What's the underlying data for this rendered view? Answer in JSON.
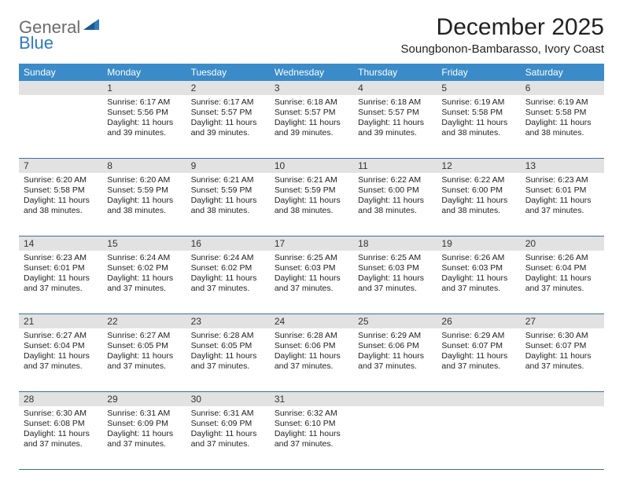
{
  "logo": {
    "text1": "General",
    "text2": "Blue"
  },
  "title": "December 2025",
  "location": "Soungbonon-Bambarasso, Ivory Coast",
  "weekdays": [
    "Sunday",
    "Monday",
    "Tuesday",
    "Wednesday",
    "Thursday",
    "Friday",
    "Saturday"
  ],
  "colors": {
    "header_bg": "#3b8bc8",
    "header_text": "#ffffff",
    "daynum_bg": "#e2e2e2",
    "row_border": "#3b6fa0",
    "logo_gray": "#6b6b6b",
    "logo_blue": "#2d7bc0",
    "text": "#222222"
  },
  "typography": {
    "title_fontsize": 30,
    "location_fontsize": 15,
    "weekday_fontsize": 12,
    "daynum_fontsize": 12,
    "cell_fontsize": 10.5
  },
  "layout": {
    "columns": 7,
    "rows": 5,
    "cell_min_height": 80
  },
  "weeks": [
    [
      {
        "n": "",
        "sr": "",
        "ss": "",
        "dl": ""
      },
      {
        "n": "1",
        "sr": "6:17 AM",
        "ss": "5:56 PM",
        "dl": "11 hours and 39 minutes."
      },
      {
        "n": "2",
        "sr": "6:17 AM",
        "ss": "5:57 PM",
        "dl": "11 hours and 39 minutes."
      },
      {
        "n": "3",
        "sr": "6:18 AM",
        "ss": "5:57 PM",
        "dl": "11 hours and 39 minutes."
      },
      {
        "n": "4",
        "sr": "6:18 AM",
        "ss": "5:57 PM",
        "dl": "11 hours and 39 minutes."
      },
      {
        "n": "5",
        "sr": "6:19 AM",
        "ss": "5:58 PM",
        "dl": "11 hours and 38 minutes."
      },
      {
        "n": "6",
        "sr": "6:19 AM",
        "ss": "5:58 PM",
        "dl": "11 hours and 38 minutes."
      }
    ],
    [
      {
        "n": "7",
        "sr": "6:20 AM",
        "ss": "5:58 PM",
        "dl": "11 hours and 38 minutes."
      },
      {
        "n": "8",
        "sr": "6:20 AM",
        "ss": "5:59 PM",
        "dl": "11 hours and 38 minutes."
      },
      {
        "n": "9",
        "sr": "6:21 AM",
        "ss": "5:59 PM",
        "dl": "11 hours and 38 minutes."
      },
      {
        "n": "10",
        "sr": "6:21 AM",
        "ss": "5:59 PM",
        "dl": "11 hours and 38 minutes."
      },
      {
        "n": "11",
        "sr": "6:22 AM",
        "ss": "6:00 PM",
        "dl": "11 hours and 38 minutes."
      },
      {
        "n": "12",
        "sr": "6:22 AM",
        "ss": "6:00 PM",
        "dl": "11 hours and 38 minutes."
      },
      {
        "n": "13",
        "sr": "6:23 AM",
        "ss": "6:01 PM",
        "dl": "11 hours and 37 minutes."
      }
    ],
    [
      {
        "n": "14",
        "sr": "6:23 AM",
        "ss": "6:01 PM",
        "dl": "11 hours and 37 minutes."
      },
      {
        "n": "15",
        "sr": "6:24 AM",
        "ss": "6:02 PM",
        "dl": "11 hours and 37 minutes."
      },
      {
        "n": "16",
        "sr": "6:24 AM",
        "ss": "6:02 PM",
        "dl": "11 hours and 37 minutes."
      },
      {
        "n": "17",
        "sr": "6:25 AM",
        "ss": "6:03 PM",
        "dl": "11 hours and 37 minutes."
      },
      {
        "n": "18",
        "sr": "6:25 AM",
        "ss": "6:03 PM",
        "dl": "11 hours and 37 minutes."
      },
      {
        "n": "19",
        "sr": "6:26 AM",
        "ss": "6:03 PM",
        "dl": "11 hours and 37 minutes."
      },
      {
        "n": "20",
        "sr": "6:26 AM",
        "ss": "6:04 PM",
        "dl": "11 hours and 37 minutes."
      }
    ],
    [
      {
        "n": "21",
        "sr": "6:27 AM",
        "ss": "6:04 PM",
        "dl": "11 hours and 37 minutes."
      },
      {
        "n": "22",
        "sr": "6:27 AM",
        "ss": "6:05 PM",
        "dl": "11 hours and 37 minutes."
      },
      {
        "n": "23",
        "sr": "6:28 AM",
        "ss": "6:05 PM",
        "dl": "11 hours and 37 minutes."
      },
      {
        "n": "24",
        "sr": "6:28 AM",
        "ss": "6:06 PM",
        "dl": "11 hours and 37 minutes."
      },
      {
        "n": "25",
        "sr": "6:29 AM",
        "ss": "6:06 PM",
        "dl": "11 hours and 37 minutes."
      },
      {
        "n": "26",
        "sr": "6:29 AM",
        "ss": "6:07 PM",
        "dl": "11 hours and 37 minutes."
      },
      {
        "n": "27",
        "sr": "6:30 AM",
        "ss": "6:07 PM",
        "dl": "11 hours and 37 minutes."
      }
    ],
    [
      {
        "n": "28",
        "sr": "6:30 AM",
        "ss": "6:08 PM",
        "dl": "11 hours and 37 minutes."
      },
      {
        "n": "29",
        "sr": "6:31 AM",
        "ss": "6:09 PM",
        "dl": "11 hours and 37 minutes."
      },
      {
        "n": "30",
        "sr": "6:31 AM",
        "ss": "6:09 PM",
        "dl": "11 hours and 37 minutes."
      },
      {
        "n": "31",
        "sr": "6:32 AM",
        "ss": "6:10 PM",
        "dl": "11 hours and 37 minutes."
      },
      {
        "n": "",
        "sr": "",
        "ss": "",
        "dl": ""
      },
      {
        "n": "",
        "sr": "",
        "ss": "",
        "dl": ""
      },
      {
        "n": "",
        "sr": "",
        "ss": "",
        "dl": ""
      }
    ]
  ],
  "labels": {
    "sunrise": "Sunrise:",
    "sunset": "Sunset:",
    "daylight": "Daylight:"
  }
}
